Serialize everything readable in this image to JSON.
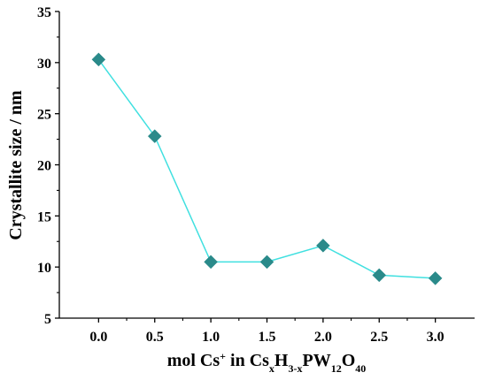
{
  "chart_data": {
    "type": "line",
    "title": "",
    "x": [
      0.0,
      0.5,
      1.0,
      1.5,
      2.0,
      2.5,
      3.0
    ],
    "x_tick_labels": [
      "0.0",
      "0.5",
      "1.0",
      "1.5",
      "2.0",
      "2.5",
      "3.0"
    ],
    "series": [
      {
        "values": [
          30.3,
          22.8,
          10.5,
          10.5,
          12.1,
          9.2,
          8.9
        ]
      }
    ],
    "xlim": [
      -0.35,
      3.35
    ],
    "ylim": [
      5,
      35
    ],
    "y_ticks": [
      5,
      10,
      15,
      20,
      25,
      30,
      35
    ],
    "y_tick_labels": [
      "5",
      "10",
      "15",
      "20",
      "25",
      "30",
      "35"
    ],
    "xlabel": {
      "prefix": "mol Cs",
      "prefix_sup": "+",
      "middle": " in Cs",
      "sub_x": "x",
      "h": "H",
      "sub_3x": "3-x",
      "pw": "PW",
      "sub_12": "12",
      "o": "O",
      "sub_40": "40"
    },
    "ylabel": "Crystallite size / nm",
    "grid": false,
    "legend": "none",
    "marker": "diamond",
    "colors": {
      "line": "#40e0e0",
      "marker": "#2a8a8a",
      "axis": "#000000"
    }
  }
}
